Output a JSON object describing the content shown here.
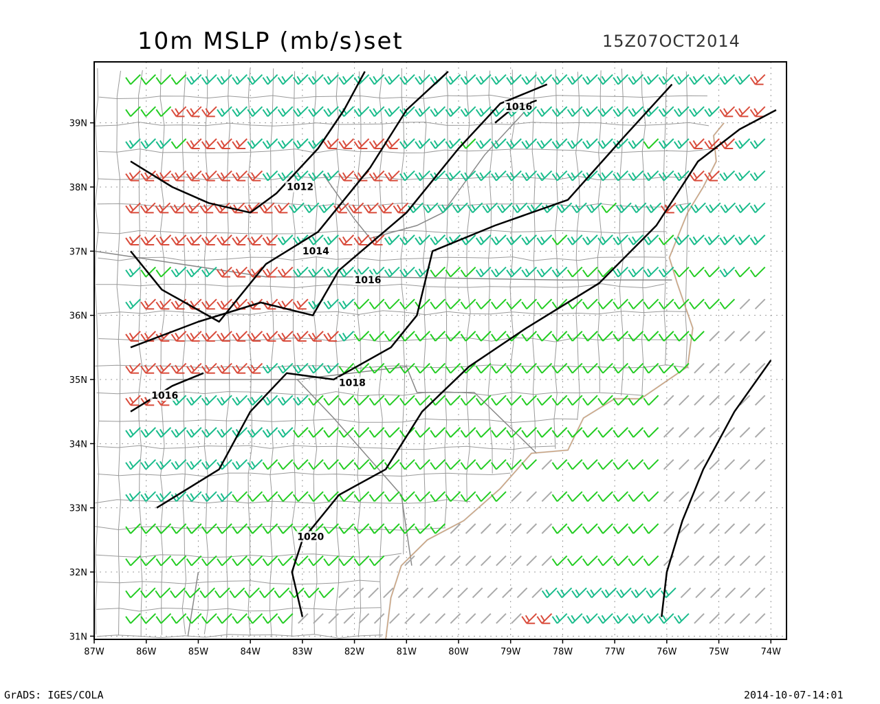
{
  "title": "10m MSLP (mb/s)set",
  "valid_time": "15Z07OCT2014",
  "footer": {
    "left": "GrADS: IGES/COLA",
    "right": "2014-10-07-14:01"
  },
  "map": {
    "lon_range": [
      -87,
      -73.7
    ],
    "lat_range": [
      30.95,
      39.95
    ],
    "x_ticks": [
      "87W",
      "86W",
      "85W",
      "84W",
      "83W",
      "82W",
      "81W",
      "80W",
      "79W",
      "78W",
      "77W",
      "76W",
      "75W",
      "74W"
    ],
    "y_ticks": [
      "31N",
      "32N",
      "33N",
      "34N",
      "35N",
      "36N",
      "37N",
      "38N",
      "39N"
    ],
    "colors": {
      "frame": "#000000",
      "county_lines": "#999999",
      "coast": "#e8a060",
      "grid": "#999999",
      "contour": "#000000",
      "barb_gray": "#aaaaaa",
      "barb_green": "#22cc22",
      "barb_teal": "#1abc8c",
      "barb_red": "#d94c3c"
    },
    "contours": [
      {
        "label": "1012",
        "label_lon": -83.3,
        "label_lat": 37.95,
        "points": [
          [
            -86.3,
            38.4
          ],
          [
            -85.5,
            38.0
          ],
          [
            -84.8,
            37.75
          ],
          [
            -84.0,
            37.6
          ],
          [
            -83.5,
            37.9
          ],
          [
            -82.7,
            38.6
          ],
          [
            -82.2,
            39.2
          ],
          [
            -81.8,
            39.8
          ]
        ]
      },
      {
        "label": "1014",
        "label_lon": -83.0,
        "label_lat": 36.95,
        "points": [
          [
            -86.3,
            37.0
          ],
          [
            -85.7,
            36.4
          ],
          [
            -84.6,
            35.9
          ],
          [
            -83.7,
            36.8
          ],
          [
            -82.7,
            37.3
          ],
          [
            -81.7,
            38.3
          ],
          [
            -81.0,
            39.2
          ],
          [
            -80.2,
            39.8
          ]
        ]
      },
      {
        "label": "1016",
        "label_lon": -82.0,
        "label_lat": 36.5,
        "points": [
          [
            -86.3,
            35.5
          ],
          [
            -85.0,
            35.9
          ],
          [
            -83.8,
            36.2
          ],
          [
            -82.8,
            36.0
          ],
          [
            -82.3,
            36.7
          ],
          [
            -81.0,
            37.6
          ],
          [
            -80.0,
            38.6
          ],
          [
            -79.2,
            39.3
          ],
          [
            -78.3,
            39.6
          ]
        ]
      },
      {
        "label": "1016",
        "label_lon": -85.9,
        "label_lat": 34.7,
        "points": [
          [
            -86.3,
            34.5
          ],
          [
            -85.5,
            34.9
          ],
          [
            -84.9,
            35.1
          ]
        ]
      },
      {
        "label": "1016",
        "label_lon": -79.1,
        "label_lat": 39.2,
        "points": [
          [
            -79.3,
            39.0
          ],
          [
            -79.0,
            39.2
          ],
          [
            -78.5,
            39.35
          ]
        ]
      },
      {
        "label": "1018",
        "label_lon": -82.3,
        "label_lat": 34.9,
        "points": [
          [
            -85.8,
            33.0
          ],
          [
            -84.6,
            33.6
          ],
          [
            -84.0,
            34.5
          ],
          [
            -83.3,
            35.1
          ],
          [
            -82.4,
            35.0
          ],
          [
            -81.3,
            35.5
          ],
          [
            -80.8,
            36.0
          ],
          [
            -80.5,
            37.0
          ],
          [
            -79.3,
            37.4
          ],
          [
            -77.9,
            37.8
          ],
          [
            -76.8,
            38.8
          ],
          [
            -75.9,
            39.6
          ]
        ]
      },
      {
        "label": "1020",
        "label_lon": -83.1,
        "label_lat": 32.5,
        "points": [
          [
            -83.0,
            31.3
          ],
          [
            -83.2,
            32.0
          ],
          [
            -83.0,
            32.5
          ],
          [
            -82.3,
            33.2
          ],
          [
            -81.4,
            33.6
          ],
          [
            -80.7,
            34.5
          ],
          [
            -79.8,
            35.2
          ],
          [
            -78.7,
            35.8
          ],
          [
            -77.3,
            36.5
          ],
          [
            -76.2,
            37.4
          ],
          [
            -75.4,
            38.4
          ],
          [
            -74.6,
            38.9
          ],
          [
            -73.9,
            39.2
          ]
        ]
      },
      {
        "label": "",
        "label_lon": 0,
        "label_lat": 0,
        "points": [
          [
            -76.1,
            31.3
          ],
          [
            -76.0,
            32.0
          ],
          [
            -75.7,
            32.8
          ],
          [
            -75.3,
            33.6
          ],
          [
            -74.7,
            34.5
          ],
          [
            -74.0,
            35.3
          ]
        ]
      }
    ],
    "state_borders": [
      [
        [
          -87,
          37.0
        ],
        [
          -83.7,
          36.6
        ],
        [
          -81.7,
          36.6
        ],
        [
          -78.0,
          36.55
        ],
        [
          -75.9,
          36.55
        ]
      ],
      [
        [
          -84.3,
          35.0
        ],
        [
          -83.1,
          35.0
        ],
        [
          -81.0,
          35.2
        ],
        [
          -80.8,
          34.8
        ],
        [
          -79.7,
          34.8
        ],
        [
          -78.5,
          33.85
        ]
      ],
      [
        [
          -85.6,
          35.0
        ],
        [
          -84.3,
          35.0
        ]
      ],
      [
        [
          -85.0,
          32.0
        ],
        [
          -85.2,
          31.0
        ]
      ],
      [
        [
          -83.1,
          35.0
        ],
        [
          -82.4,
          34.4
        ],
        [
          -81.1,
          33.2
        ],
        [
          -80.9,
          32.1
        ]
      ],
      [
        [
          -82.6,
          38.2
        ],
        [
          -82.0,
          37.5
        ],
        [
          -81.7,
          37.2
        ],
        [
          -80.8,
          37.4
        ],
        [
          -80.3,
          37.6
        ],
        [
          -79.5,
          38.5
        ],
        [
          -78.7,
          39.2
        ]
      ]
    ],
    "coastline": [
      [
        -81.4,
        30.95
      ],
      [
        -81.3,
        31.6
      ],
      [
        -81.1,
        32.1
      ],
      [
        -80.6,
        32.5
      ],
      [
        -79.9,
        32.8
      ],
      [
        -79.2,
        33.3
      ],
      [
        -78.6,
        33.85
      ],
      [
        -77.9,
        33.9
      ],
      [
        -77.6,
        34.4
      ],
      [
        -77.0,
        34.7
      ],
      [
        -76.5,
        34.7
      ],
      [
        -75.6,
        35.2
      ],
      [
        -75.5,
        35.8
      ],
      [
        -75.8,
        36.5
      ],
      [
        -75.95,
        36.9
      ],
      [
        -75.6,
        37.6
      ],
      [
        -75.3,
        38.0
      ],
      [
        -75.05,
        38.4
      ],
      [
        -75.1,
        38.8
      ],
      [
        -74.9,
        39.0
      ]
    ],
    "wind_rows": [
      {
        "lat": 39.6,
        "lon_start": -86.3,
        "lon_end": -74.3,
        "color_plan": "ggggtttttttttttttttttttttttttttttttttttttr"
      },
      {
        "lat": 39.1,
        "lon_start": -86.3,
        "lon_end": -74.3,
        "color_plan": "gggrrrtttttttttttttttttttttttttttttttttrrr"
      },
      {
        "lat": 38.6,
        "lon_start": -86.3,
        "lon_end": -74.3,
        "color_plan": "tttgrrrrtttttrrrrrttttgtttttttttttgttrrrtt"
      },
      {
        "lat": 38.1,
        "lon_start": -86.3,
        "lon_end": -74.3,
        "color_plan": "rrrrrrrrrtttttrrrrtttttttttttttttttttrrttt"
      },
      {
        "lat": 37.6,
        "lon_start": -86.3,
        "lon_end": -74.3,
        "color_plan": "rrrrrrrrrrrtttrrrrrtttttttttttttgtttrtttttt"
      },
      {
        "lat": 37.1,
        "lon_start": -86.3,
        "lon_end": -74.3,
        "color_plan": "rrrrrrrrrrttttrrrtttttttttttgttttttgtttttt"
      },
      {
        "lat": 36.6,
        "lon_start": -86.3,
        "lon_end": -74.3,
        "color_plan": "tggtttrrrrrtttttttttgggttttttgggttttgggtgg"
      },
      {
        "lat": 36.1,
        "lon_start": -86.3,
        "lon_end": -74.3,
        "color_plan": "trrrrrrrrrrrtttgggggggggggggggggggggggggaa"
      },
      {
        "lat": 35.6,
        "lon_start": -86.3,
        "lon_end": -74.3,
        "color_plan": "rrrrrrrrrrrrrrtgggggggggggggggggggggggaaaa"
      },
      {
        "lat": 35.1,
        "lon_start": -86.3,
        "lon_end": -74.3,
        "color_plan": "rrrrrrrrrtttttgggggggggggggggggggggggaaaaa"
      },
      {
        "lat": 34.6,
        "lon_start": -86.3,
        "lon_end": -74.3,
        "color_plan": "rrrtttttttttgggggggggggggggggggggggaaaaaaa"
      },
      {
        "lat": 34.1,
        "lon_start": -86.3,
        "lon_end": -74.3,
        "color_plan": "tttttttttttggggggggggggggggggggggggaaaaaaa"
      },
      {
        "lat": 33.6,
        "lon_start": -86.3,
        "lon_end": -74.3,
        "color_plan": "tttttttttggggggggggggggggggagggggggaaaaaaa"
      },
      {
        "lat": 33.1,
        "lon_start": -86.3,
        "lon_end": -74.3,
        "color_plan": "tttttttggggggggggggggggggaaagggggggaaaaaaa"
      },
      {
        "lat": 32.6,
        "lon_start": -86.3,
        "lon_end": -74.3,
        "color_plan": "gggggggggggggggggggggaaaaaaagggggggaaaaaaa"
      },
      {
        "lat": 32.1,
        "lon_start": -86.3,
        "lon_end": -74.3,
        "color_plan": "gggggggggggggggggaaaaaaaaaaagggggggaaaaaaa"
      },
      {
        "lat": 31.6,
        "lon_start": -86.3,
        "lon_end": -74.3,
        "color_plan": "ggggggggggggggaaaaaaaaaaaaaatttttttttaaaaaa"
      },
      {
        "lat": 31.2,
        "lon_start": -86.3,
        "lon_end": -74.3,
        "color_plan": "gggggggggggaaaaaaaaaaaaaaarrtttttttttaaaaa"
      }
    ]
  }
}
